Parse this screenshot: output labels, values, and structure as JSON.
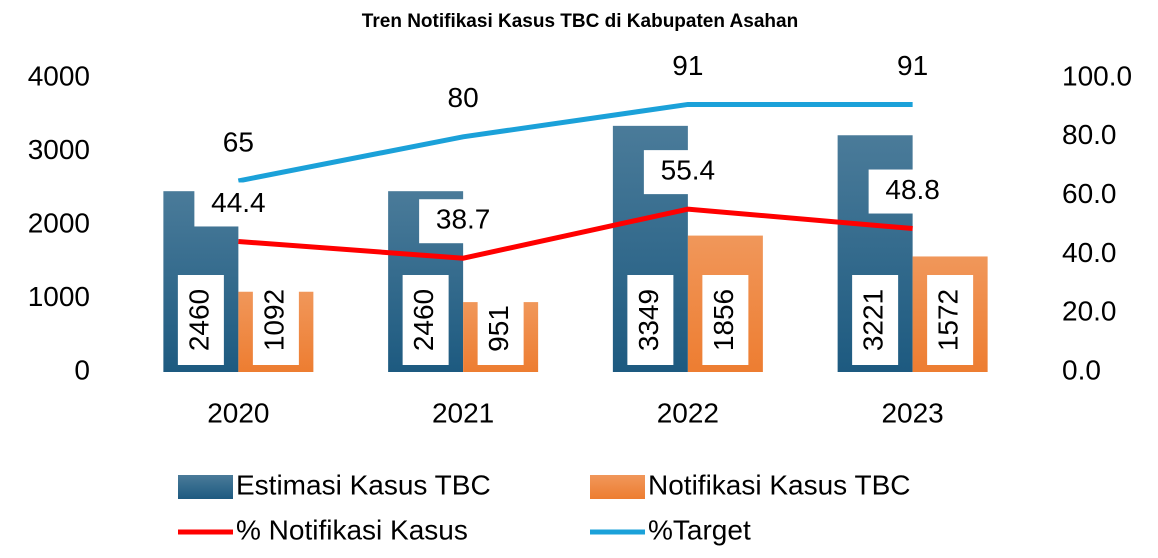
{
  "chart_data": {
    "type": "bar",
    "title": "Tren Notifikasi Kasus TBC di Kabupaten Asahan",
    "categories": [
      "2020",
      "2021",
      "2022",
      "2023"
    ],
    "series": [
      {
        "name": "Estimasi Kasus TBC",
        "type": "bar",
        "color": "#1d5a80",
        "values": [
          2460,
          2460,
          3349,
          3221
        ]
      },
      {
        "name": "Notifikasi Kasus TBC",
        "type": "bar",
        "color": "#ed7d31",
        "values": [
          1092,
          951,
          1856,
          1572
        ]
      },
      {
        "name": "% Notifikasi Kasus",
        "type": "line",
        "axis": "y2",
        "color": "#ff0000",
        "values": [
          44.4,
          38.7,
          55.4,
          48.8
        ]
      },
      {
        "name": "%Target",
        "type": "line",
        "axis": "y2",
        "color": "#1ba1d9",
        "values": [
          65,
          80,
          91,
          91
        ]
      }
    ],
    "ylim": [
      0,
      4000
    ],
    "yticks": [
      0,
      1000,
      2000,
      3000,
      4000
    ],
    "y2lim": [
      0,
      100
    ],
    "y2ticks": [
      {
        "value": 0,
        "label": "0.0"
      },
      {
        "value": 20,
        "label": "20.0"
      },
      {
        "value": 40,
        "label": "40.0"
      },
      {
        "value": 60,
        "label": "60.0"
      },
      {
        "value": 80,
        "label": "80.0"
      },
      {
        "value": 100,
        "label": "100.0"
      }
    ],
    "legend": "bottom"
  }
}
